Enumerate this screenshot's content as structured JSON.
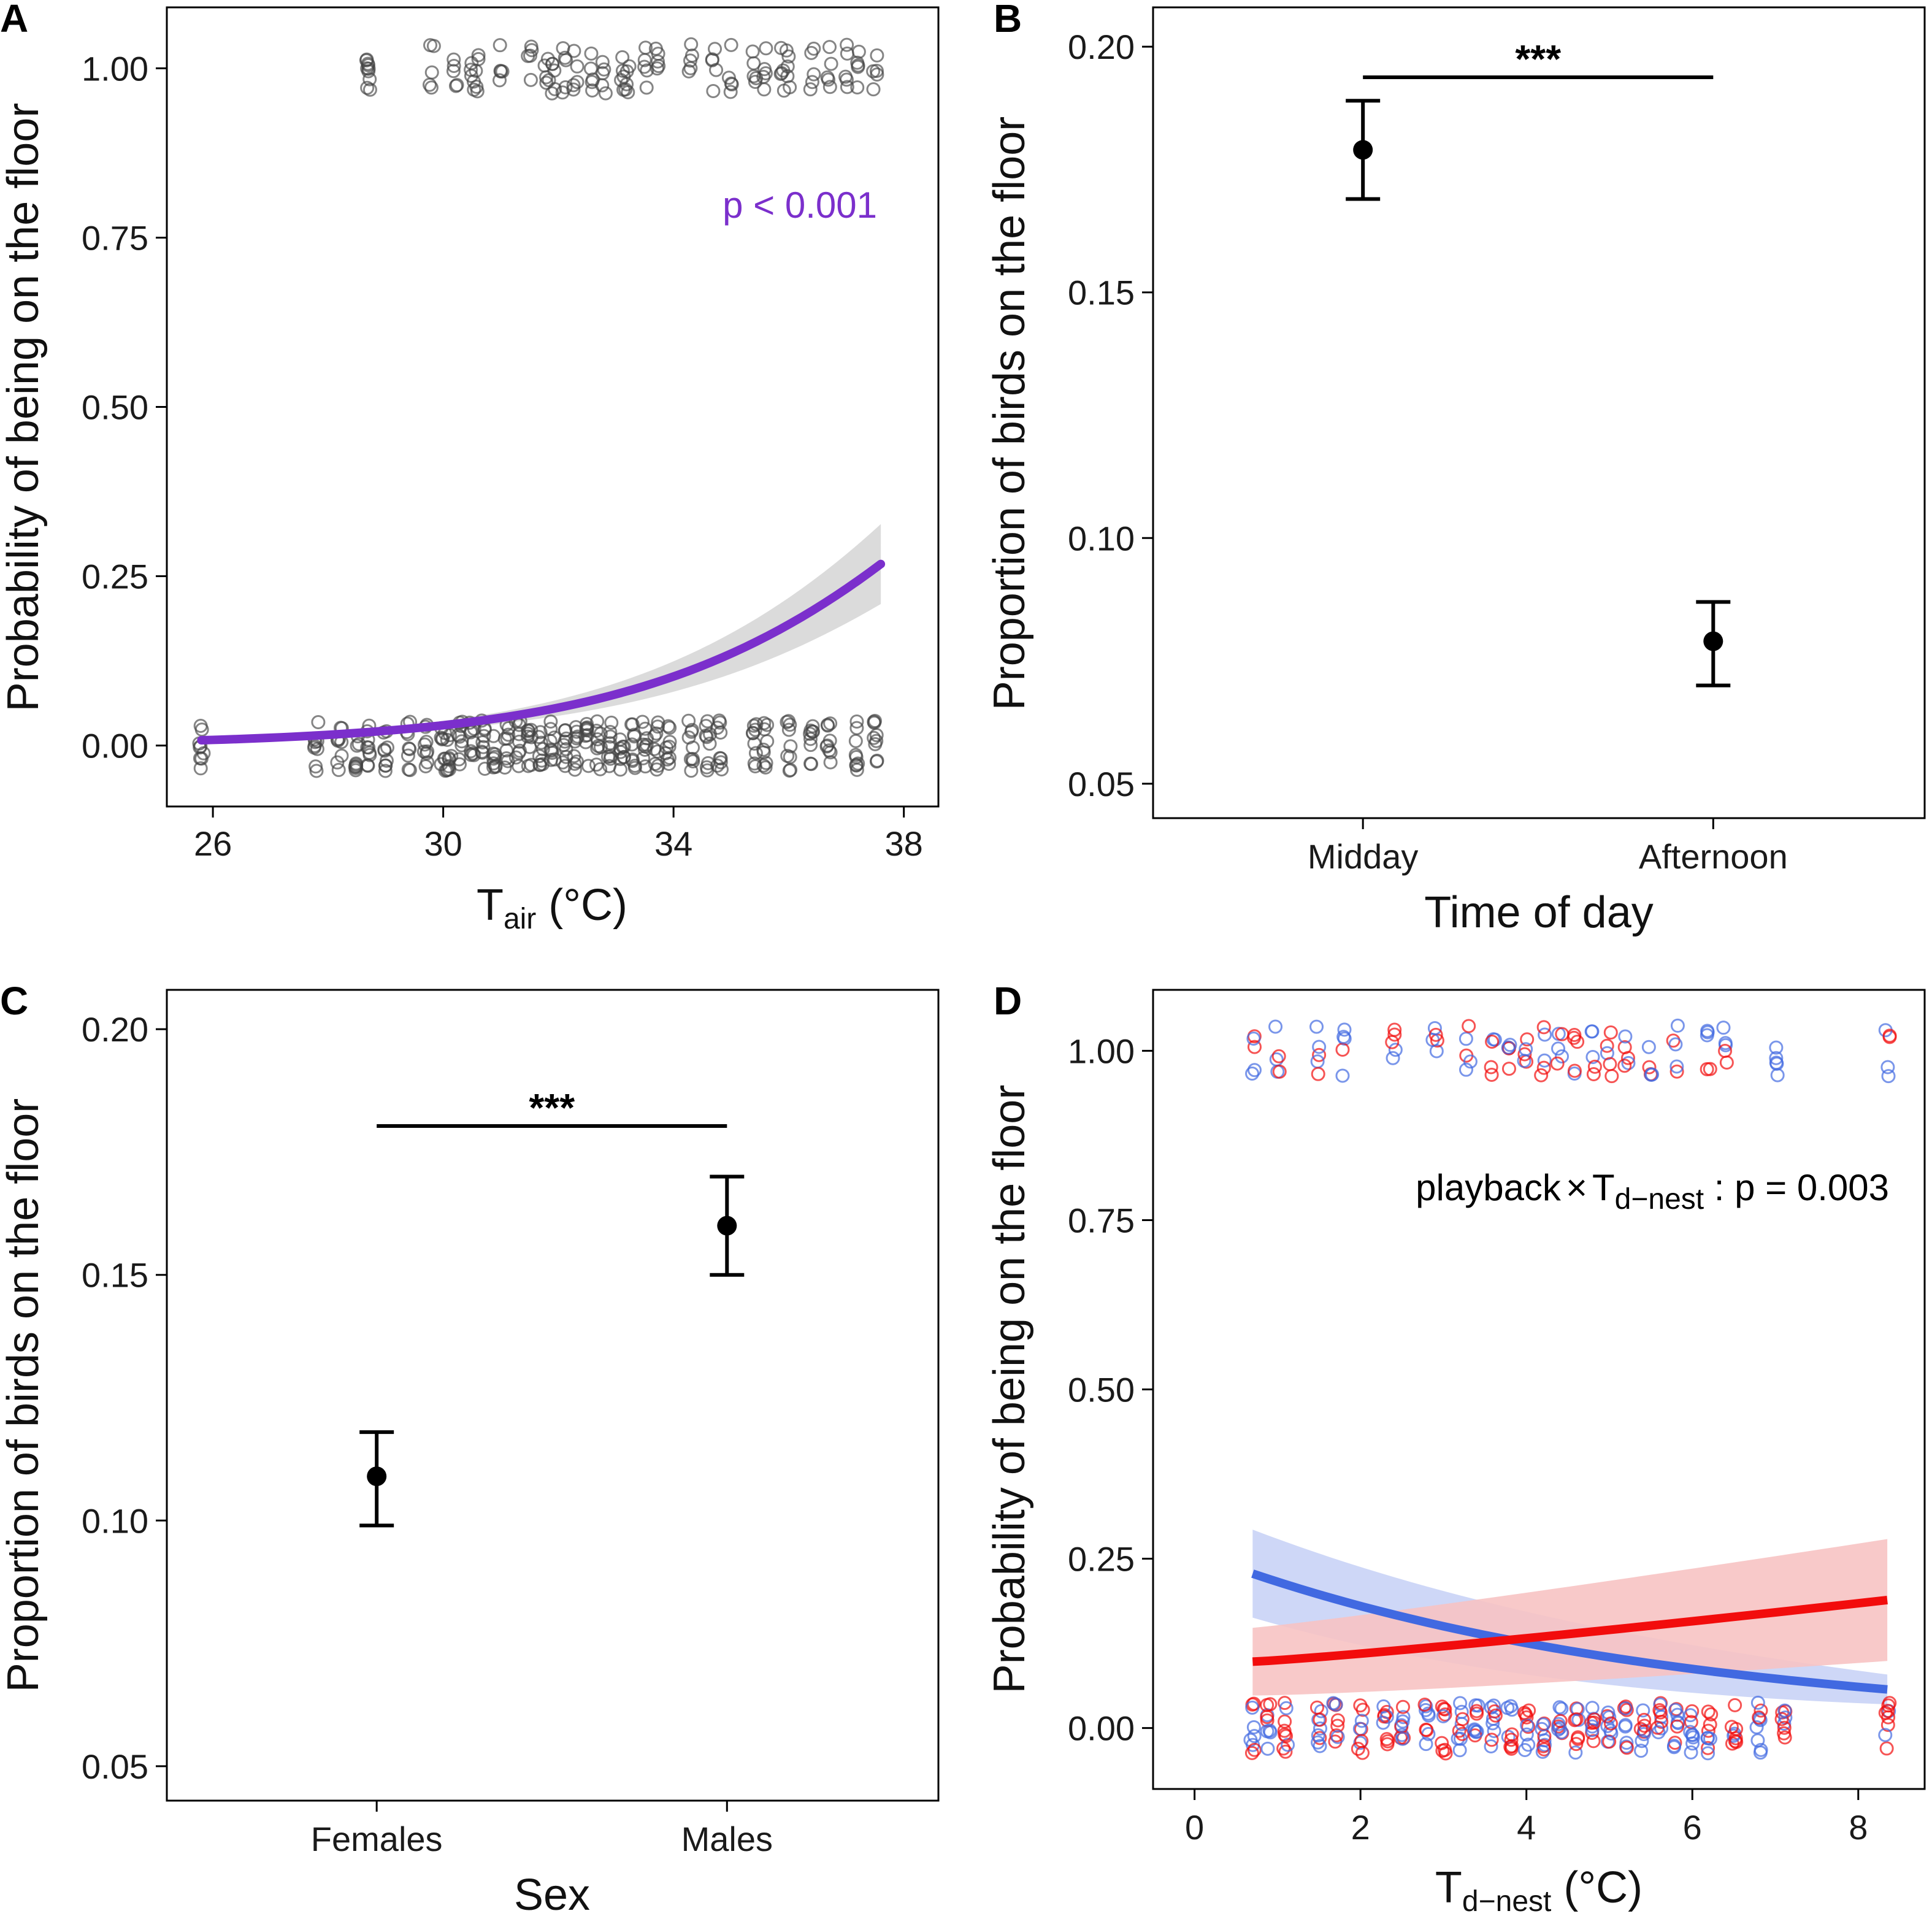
{
  "chart_data": [
    {
      "panel": "A",
      "type": "scatter",
      "xlabel": {
        "main": "T",
        "sub": "air",
        "rest": " (°C)"
      },
      "ylabel": "Probability of being on the floor",
      "xlim": [
        25.2,
        38.6
      ],
      "ylim": [
        -0.09,
        1.09
      ],
      "xticks": [
        "26",
        "30",
        "34",
        "38"
      ],
      "yticks": [
        "0.00",
        "0.25",
        "0.50",
        "0.75",
        "1.00"
      ],
      "annotation": "p < 0.001",
      "curve_color": "#7B2FCC",
      "band_color": "#d9d9d9",
      "point_color": "#444444",
      "fit": {
        "logit_intercept": -5.106,
        "logit_slope": 0.3255,
        "x_center": 25,
        "x_range": [
          25.8,
          37.6
        ],
        "band_halfwidth_at_end": 0.055
      },
      "points_y1_x": [
        28.7,
        28.7,
        29.8,
        30.2,
        30.5,
        30.6,
        31.0,
        31.5,
        31.8,
        31.9,
        32.1,
        32.3,
        32.6,
        32.8,
        33.1,
        33.2,
        33.5,
        33.7,
        34.3,
        34.7,
        35.0,
        35.4,
        35.6,
        35.9,
        36.0,
        36.4,
        36.7,
        37.0,
        37.2,
        37.5
      ],
      "points_y0_x": [
        25.8,
        27.8,
        28.2,
        28.5,
        28.7,
        29.0,
        29.4,
        29.7,
        30.0,
        30.1,
        30.3,
        30.5,
        30.7,
        30.9,
        31.1,
        31.3,
        31.5,
        31.7,
        31.9,
        32.1,
        32.3,
        32.5,
        32.7,
        32.9,
        33.1,
        33.3,
        33.5,
        33.7,
        33.9,
        34.3,
        34.6,
        34.8,
        35.4,
        35.6,
        36.0,
        36.4,
        36.7,
        37.2,
        37.5
      ]
    },
    {
      "panel": "B",
      "type": "errorbar",
      "xlabel": "Time of day",
      "ylabel": "Proportion of birds on the floor",
      "ylim": [
        0.043,
        0.208
      ],
      "yticks": [
        "0.05",
        "0.10",
        "0.15",
        "0.20"
      ],
      "categories": [
        "Midday",
        "Afternoon"
      ],
      "values": [
        0.179,
        0.079
      ],
      "lower": [
        0.169,
        0.07
      ],
      "upper": [
        0.189,
        0.087
      ],
      "significance": "***"
    },
    {
      "panel": "C",
      "type": "errorbar",
      "xlabel": "Sex",
      "ylabel": "Proportion of birds on the floor",
      "ylim": [
        0.043,
        0.208
      ],
      "yticks": [
        "0.05",
        "0.10",
        "0.15",
        "0.20"
      ],
      "categories": [
        "Females",
        "Males"
      ],
      "values": [
        0.109,
        0.16
      ],
      "lower": [
        0.099,
        0.15
      ],
      "upper": [
        0.118,
        0.17
      ],
      "significance": "***"
    },
    {
      "panel": "D",
      "type": "scatter",
      "xlabel": {
        "main": "T",
        "sub": "d−nest",
        "rest": " (°C)"
      },
      "ylabel": "Probability of being on the floor",
      "xlim": [
        -0.5,
        8.8
      ],
      "ylim": [
        -0.09,
        1.09
      ],
      "xticks": [
        "0",
        "2",
        "4",
        "6",
        "8"
      ],
      "yticks": [
        "0.00",
        "0.25",
        "0.50",
        "0.75",
        "1.00"
      ],
      "annotation": {
        "prefix": "playback",
        "times": "×",
        "main": "T",
        "sub": "d−nest",
        "rest": " : p = 0.003"
      },
      "series": [
        {
          "name": "blue",
          "color": "#4169E1",
          "band_color": "#c9d3f6",
          "line": {
            "x": [
              0.7,
              8.35
            ],
            "y_start": 0.228,
            "y_end": 0.057,
            "band_halfwidth": [
              0.065,
              0.022
            ]
          }
        },
        {
          "name": "red",
          "color": "#F20C0C",
          "band_color": "#f7c3c3",
          "line": {
            "x": [
              0.7,
              8.35
            ],
            "y_start": 0.098,
            "y_end": 0.189,
            "band_halfwidth": [
              0.05,
              0.09
            ]
          }
        }
      ],
      "points_y1_x": [
        0.7,
        1.0,
        1.5,
        1.8,
        2.4,
        2.9,
        3.3,
        3.6,
        3.8,
        4.0,
        4.2,
        4.4,
        4.6,
        4.8,
        5.0,
        5.2,
        5.5,
        5.8,
        6.2,
        6.4,
        7.0,
        8.35
      ],
      "points_y0_x": [
        0.7,
        0.9,
        1.1,
        1.5,
        1.7,
        2.0,
        2.3,
        2.5,
        2.8,
        3.0,
        3.2,
        3.4,
        3.6,
        3.8,
        4.0,
        4.2,
        4.4,
        4.6,
        4.8,
        5.0,
        5.2,
        5.4,
        5.6,
        5.8,
        6.0,
        6.2,
        6.5,
        6.8,
        7.1,
        8.35
      ]
    }
  ]
}
